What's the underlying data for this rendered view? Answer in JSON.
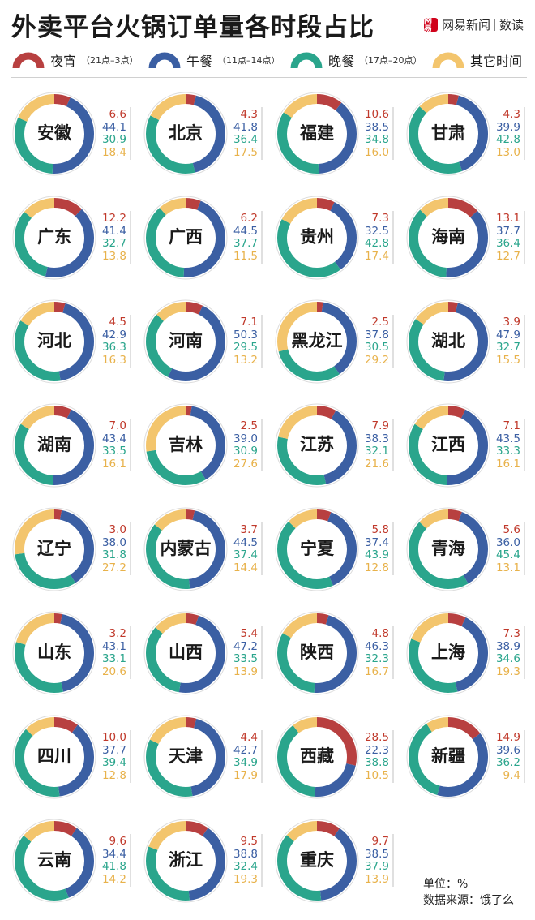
{
  "title": "外卖平台火锅订单量各时段占比",
  "brand": {
    "logo_text": "网易",
    "name": "网易新闻",
    "section": "数读"
  },
  "legend": [
    {
      "name": "夜宵",
      "range": "21点–3点",
      "color": "#b84040"
    },
    {
      "name": "午餐",
      "range": "11点–14点",
      "color": "#3b5fa3"
    },
    {
      "name": "晚餐",
      "range": "17点–20点",
      "color": "#2aa58c"
    },
    {
      "name": "其它时间",
      "range": "",
      "color": "#f3c56d"
    }
  ],
  "chart_data": {
    "type": "donut",
    "series_names": [
      "夜宵",
      "午餐",
      "晚餐",
      "其它时间"
    ],
    "provinces": [
      {
        "name": "安徽",
        "values": [
          "6.6",
          "44.1",
          "30.9",
          "18.4"
        ]
      },
      {
        "name": "北京",
        "values": [
          "4.3",
          "41.8",
          "36.4",
          "17.5"
        ]
      },
      {
        "name": "福建",
        "values": [
          "10.6",
          "38.5",
          "34.8",
          "16.0"
        ]
      },
      {
        "name": "甘肃",
        "values": [
          "4.3",
          "39.9",
          "42.8",
          "13.0"
        ]
      },
      {
        "name": "广东",
        "values": [
          "12.2",
          "41.4",
          "32.7",
          "13.8"
        ]
      },
      {
        "name": "广西",
        "values": [
          "6.2",
          "44.5",
          "37.7",
          "11.5"
        ]
      },
      {
        "name": "贵州",
        "values": [
          "7.3",
          "32.5",
          "42.8",
          "17.4"
        ]
      },
      {
        "name": "海南",
        "values": [
          "13.1",
          "37.7",
          "36.4",
          "12.7"
        ]
      },
      {
        "name": "河北",
        "values": [
          "4.5",
          "42.9",
          "36.3",
          "16.3"
        ]
      },
      {
        "name": "河南",
        "values": [
          "7.1",
          "50.3",
          "29.5",
          "13.2"
        ]
      },
      {
        "name": "黑龙江",
        "values": [
          "2.5",
          "37.8",
          "30.5",
          "29.2"
        ]
      },
      {
        "name": "湖北",
        "values": [
          "3.9",
          "47.9",
          "32.7",
          "15.5"
        ]
      },
      {
        "name": "湖南",
        "values": [
          "7.0",
          "43.4",
          "33.5",
          "16.1"
        ]
      },
      {
        "name": "吉林",
        "values": [
          "2.5",
          "39.0",
          "30.9",
          "27.6"
        ]
      },
      {
        "name": "江苏",
        "values": [
          "7.9",
          "38.3",
          "32.1",
          "21.6"
        ]
      },
      {
        "name": "江西",
        "values": [
          "7.1",
          "43.5",
          "33.3",
          "16.1"
        ]
      },
      {
        "name": "辽宁",
        "values": [
          "3.0",
          "38.0",
          "31.8",
          "27.2"
        ]
      },
      {
        "name": "内蒙古",
        "values": [
          "3.7",
          "44.5",
          "37.4",
          "14.4"
        ]
      },
      {
        "name": "宁夏",
        "values": [
          "5.8",
          "37.4",
          "43.9",
          "12.8"
        ]
      },
      {
        "name": "青海",
        "values": [
          "5.6",
          "36.0",
          "45.4",
          "13.1"
        ]
      },
      {
        "name": "山东",
        "values": [
          "3.2",
          "43.1",
          "33.1",
          "20.6"
        ]
      },
      {
        "name": "山西",
        "values": [
          "5.4",
          "47.2",
          "33.5",
          "13.9"
        ]
      },
      {
        "name": "陕西",
        "values": [
          "4.8",
          "46.3",
          "32.3",
          "16.7"
        ]
      },
      {
        "name": "上海",
        "values": [
          "7.3",
          "38.9",
          "34.6",
          "19.3"
        ]
      },
      {
        "name": "四川",
        "values": [
          "10.0",
          "37.7",
          "39.4",
          "12.8"
        ]
      },
      {
        "name": "天津",
        "values": [
          "4.4",
          "42.7",
          "34.9",
          "17.9"
        ]
      },
      {
        "name": "西藏",
        "values": [
          "28.5",
          "22.3",
          "38.8",
          "10.5"
        ]
      },
      {
        "name": "新疆",
        "values": [
          "14.9",
          "39.6",
          "36.2",
          "9.4"
        ]
      },
      {
        "name": "云南",
        "values": [
          "9.6",
          "34.4",
          "41.8",
          "14.2"
        ]
      },
      {
        "name": "浙江",
        "values": [
          "9.5",
          "38.8",
          "32.4",
          "19.3"
        ]
      },
      {
        "name": "重庆",
        "values": [
          "9.7",
          "38.5",
          "37.9",
          "13.9"
        ]
      }
    ]
  },
  "footer": {
    "unit": "单位：%",
    "source": "数据来源：饿了么"
  }
}
